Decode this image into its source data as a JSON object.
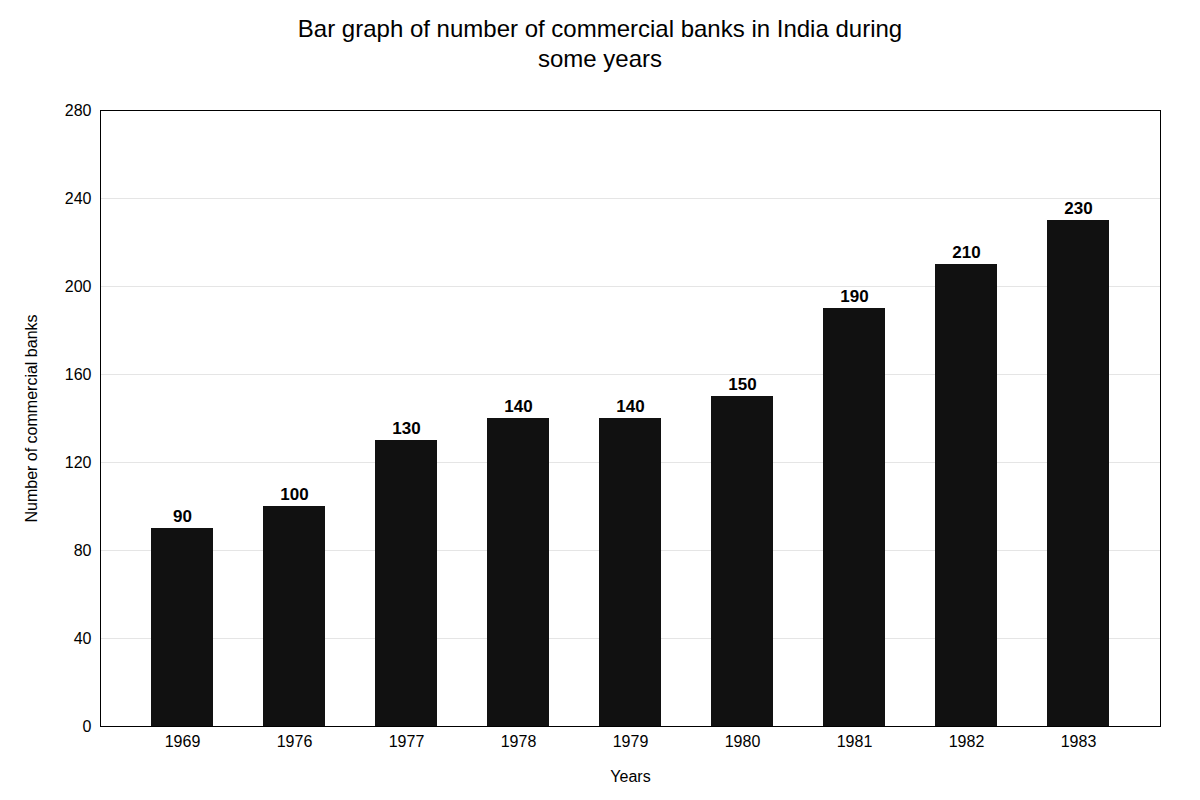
{
  "chart_data": {
    "type": "bar",
    "title": "Bar graph of number of commercial banks in India during\nsome years",
    "xlabel": "Years",
    "ylabel": "Number of commercial banks",
    "categories": [
      "1969",
      "1976",
      "1977",
      "1978",
      "1979",
      "1980",
      "1981",
      "1982",
      "1983"
    ],
    "values": [
      90,
      100,
      130,
      140,
      140,
      150,
      190,
      210,
      230
    ],
    "color": "#111111",
    "ylim": [
      0,
      280
    ],
    "yticks": [
      0,
      40,
      80,
      120,
      160,
      200,
      240,
      280
    ],
    "grid": true,
    "data_labels": true
  }
}
